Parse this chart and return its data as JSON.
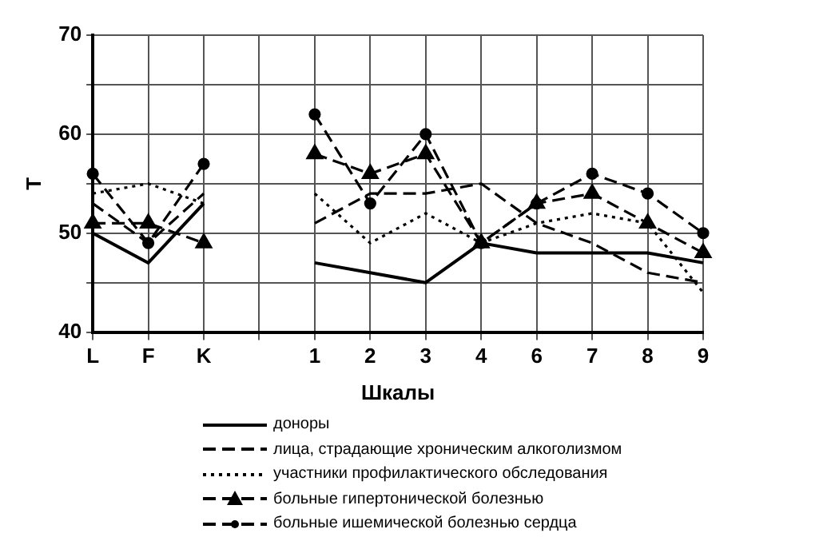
{
  "chart_data": {
    "type": "line",
    "xlabel": "Шкалы",
    "ylabel": "T",
    "categories": [
      "L",
      "F",
      "K",
      null,
      "1",
      "2",
      "3",
      "4",
      "6",
      "7",
      "8",
      "9"
    ],
    "ylim": [
      40,
      70
    ],
    "yticks": [
      40,
      {
        "value": 45,
        "label": null
      },
      50,
      {
        "value": 55,
        "label": null
      },
      60,
      {
        "value": 65,
        "label": null
      },
      70
    ],
    "grid": true,
    "legend": "bottom",
    "series": [
      {
        "name": "доноры",
        "color": "#000000",
        "line_style": "solid",
        "marker": "none",
        "values": [
          50,
          47,
          53,
          null,
          47,
          46,
          45,
          49,
          48,
          48,
          48,
          47
        ]
      },
      {
        "name": "лица, страдающие хроническим алкоголизмом",
        "color": "#000000",
        "line_style": "dashed",
        "marker": "none",
        "values": [
          53,
          49,
          54,
          null,
          51,
          54,
          54,
          55,
          51,
          49,
          46,
          45
        ]
      },
      {
        "name": "участники профилактического обследования",
        "color": "#000000",
        "line_style": "dotted",
        "marker": "none",
        "values": [
          54,
          55,
          53,
          null,
          54,
          49,
          52,
          49,
          51,
          52,
          51,
          44
        ]
      },
      {
        "name": "больные гипертонической болезнью",
        "color": "#000000",
        "line_style": "dashed",
        "marker": "triangle",
        "values": [
          51,
          51,
          49,
          null,
          58,
          56,
          58,
          49,
          53,
          54,
          51,
          48
        ]
      },
      {
        "name": "больные ишемической болезнью сердца",
        "color": "#000000",
        "line_style": "dashed",
        "marker": "circle",
        "values": [
          56,
          49,
          57,
          null,
          62,
          53,
          60,
          49,
          53,
          56,
          54,
          50
        ]
      }
    ]
  }
}
